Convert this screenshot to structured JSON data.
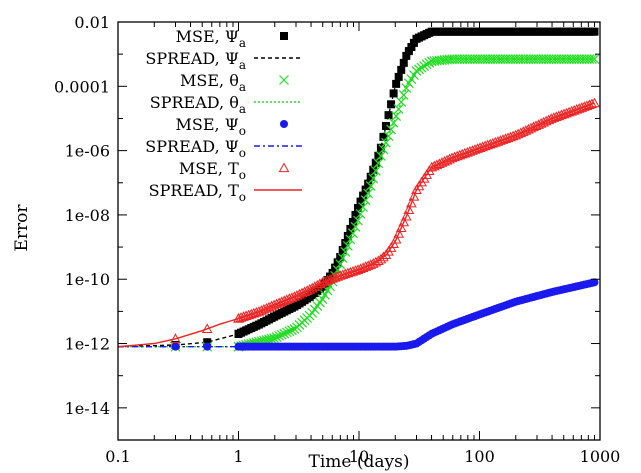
{
  "chart_data": {
    "type": "scatter",
    "title": "",
    "xlabel": "Time (days)",
    "ylabel": "Error",
    "xscale": "log",
    "yscale": "log",
    "xlim": [
      0.1,
      1000
    ],
    "ylim": [
      1e-15,
      0.01
    ],
    "x_ticks": [
      0.1,
      1,
      10,
      100,
      1000
    ],
    "x_tick_labels": [
      "0.1",
      "1",
      "10",
      "100",
      "1000"
    ],
    "y_ticks": [
      0.01,
      0.0001,
      1e-06,
      1e-08,
      1e-10,
      1e-12,
      1e-14
    ],
    "y_tick_labels": [
      "0.01",
      "0.0001",
      "1e-06",
      "1e-08",
      "1e-10",
      "1e-12",
      "1e-14"
    ],
    "grid": false,
    "legend_position": "top-left",
    "legend": [
      {
        "base": "MSE, ",
        "sym": "Ψ",
        "sub": "a",
        "kind": "marker",
        "marker": "square",
        "color": "#000000"
      },
      {
        "base": "SPREAD, ",
        "sym": "Ψ",
        "sub": "a",
        "kind": "line",
        "dash": "4,3",
        "color": "#000000"
      },
      {
        "base": "MSE, ",
        "sym": "θ",
        "sub": "a",
        "kind": "marker",
        "marker": "cross",
        "color": "#22dd22"
      },
      {
        "base": "SPREAD, ",
        "sym": "θ",
        "sub": "a",
        "kind": "line",
        "dash": "2,2",
        "color": "#22dd22"
      },
      {
        "base": "MSE, ",
        "sym": "Ψ",
        "sub": "o",
        "kind": "marker",
        "marker": "circle",
        "color": "#1a1aee"
      },
      {
        "base": "SPREAD, ",
        "sym": "Ψ",
        "sub": "o",
        "kind": "line",
        "dash": "6,3,2,3",
        "color": "#1a1aee"
      },
      {
        "base": "MSE, ",
        "sym": "T",
        "sub": "o",
        "kind": "marker",
        "marker": "triangle",
        "color": "#ee2222"
      },
      {
        "base": "SPREAD, ",
        "sym": "T",
        "sub": "o",
        "kind": "line",
        "dash": "",
        "color": "#ee2222"
      }
    ],
    "series": [
      {
        "name": "MSE, Ψa",
        "marker": "square",
        "color": "#000000",
        "x": [
          0.1,
          0.3,
          0.55,
          1,
          1.5,
          2,
          3,
          4,
          5,
          6,
          7,
          8,
          10,
          12,
          15,
          20,
          25,
          30,
          40,
          60,
          100,
          300,
          900
        ],
        "y": [
          8e-13,
          9e-13,
          1.1e-12,
          2e-12,
          4e-12,
          7e-12,
          1.5e-11,
          3e-11,
          6e-11,
          1.5e-10,
          5e-10,
          2e-09,
          2e-08,
          1e-07,
          1e-06,
          0.0001,
          0.001,
          0.003,
          0.005,
          0.005,
          0.005,
          0.005,
          0.005
        ]
      },
      {
        "name": "SPREAD, Ψa",
        "marker": "line",
        "color": "#000000",
        "x": [
          0.1,
          0.3,
          0.55,
          1,
          1.5,
          2,
          3,
          4,
          5,
          6,
          7,
          8,
          10,
          12,
          15,
          20,
          25,
          30,
          40,
          60,
          100,
          300,
          900
        ],
        "y": [
          8e-13,
          9e-13,
          1.1e-12,
          2e-12,
          4e-12,
          7e-12,
          1.5e-11,
          3e-11,
          6e-11,
          1.5e-10,
          5e-10,
          2e-09,
          2e-08,
          1e-07,
          1e-06,
          0.0001,
          0.001,
          0.003,
          0.005,
          0.005,
          0.005,
          0.005,
          0.005
        ]
      },
      {
        "name": "MSE, θa",
        "marker": "cross",
        "color": "#22dd22",
        "x": [
          0.1,
          0.3,
          1,
          2,
          3,
          4,
          5,
          6,
          7,
          8,
          10,
          12,
          15,
          20,
          25,
          30,
          40,
          60,
          100,
          300,
          900
        ],
        "y": [
          8e-13,
          8e-13,
          8e-13,
          1.5e-12,
          3e-12,
          8e-12,
          2.5e-11,
          8e-11,
          3e-10,
          1e-09,
          8e-09,
          5e-08,
          6e-07,
          1e-05,
          0.0001,
          0.0003,
          0.0006,
          0.0007,
          0.0007,
          0.0007,
          0.0007
        ]
      },
      {
        "name": "SPREAD, θa",
        "marker": "line",
        "color": "#22dd22",
        "x": [
          0.1,
          0.3,
          1,
          2,
          3,
          4,
          5,
          6,
          7,
          8,
          10,
          12,
          15,
          20,
          25,
          30,
          40,
          60,
          100,
          300,
          900
        ],
        "y": [
          8e-13,
          8e-13,
          8e-13,
          1.5e-12,
          3e-12,
          8e-12,
          2.5e-11,
          8e-11,
          3e-10,
          1e-09,
          8e-09,
          5e-08,
          6e-07,
          1e-05,
          0.0001,
          0.0003,
          0.0006,
          0.0007,
          0.0007,
          0.0007,
          0.0007
        ]
      },
      {
        "name": "MSE, Ψo",
        "marker": "circle",
        "color": "#1a1aee",
        "x": [
          0.1,
          0.3,
          1,
          3,
          10,
          20,
          25,
          30,
          40,
          60,
          100,
          200,
          400,
          900
        ],
        "y": [
          8e-13,
          8e-13,
          8e-13,
          8e-13,
          8e-13,
          8e-13,
          8.5e-13,
          1e-12,
          2e-12,
          4e-12,
          8e-12,
          2e-11,
          4e-11,
          8e-11
        ]
      },
      {
        "name": "SPREAD, Ψo",
        "marker": "line",
        "color": "#1a1aee",
        "x": [
          0.1,
          0.3,
          1,
          3,
          10,
          20,
          25,
          30,
          40,
          60,
          100,
          200,
          400,
          900
        ],
        "y": [
          8e-13,
          8e-13,
          8e-13,
          8e-13,
          8e-13,
          8e-13,
          8.5e-13,
          1e-12,
          2e-12,
          4e-12,
          8e-12,
          2e-11,
          4e-11,
          8e-11
        ]
      },
      {
        "name": "MSE, To",
        "marker": "triangle",
        "color": "#ee2222",
        "x": [
          0.1,
          0.2,
          0.3,
          0.5,
          0.7,
          1,
          1.5,
          2,
          3,
          4,
          5,
          7,
          10,
          13,
          15,
          17,
          20,
          25,
          30,
          40,
          60,
          100,
          200,
          400,
          900
        ],
        "y": [
          8e-13,
          1e-12,
          1.4e-12,
          2.5e-12,
          4e-12,
          6e-12,
          1e-11,
          1.6e-11,
          3e-11,
          5e-11,
          8e-11,
          1.3e-10,
          2e-10,
          3e-10,
          4e-10,
          6e-10,
          1.5e-09,
          1e-08,
          6e-08,
          3e-07,
          6e-07,
          1.2e-06,
          3e-06,
          1e-05,
          3e-05
        ]
      },
      {
        "name": "SPREAD, To",
        "marker": "line",
        "color": "#ee2222",
        "x": [
          0.1,
          0.2,
          0.3,
          0.5,
          0.7,
          1,
          1.5,
          2,
          3,
          4,
          5,
          7,
          10,
          13,
          15,
          17,
          20,
          25,
          30,
          40,
          60,
          100,
          200,
          400,
          900
        ],
        "y": [
          8e-13,
          1e-12,
          1.4e-12,
          2.5e-12,
          4e-12,
          6e-12,
          1e-11,
          1.6e-11,
          3e-11,
          5e-11,
          8e-11,
          1.3e-10,
          2e-10,
          3e-10,
          4e-10,
          6e-10,
          1.5e-09,
          1e-08,
          6e-08,
          3e-07,
          6e-07,
          1.2e-06,
          3e-06,
          1e-05,
          3e-05
        ]
      }
    ]
  }
}
